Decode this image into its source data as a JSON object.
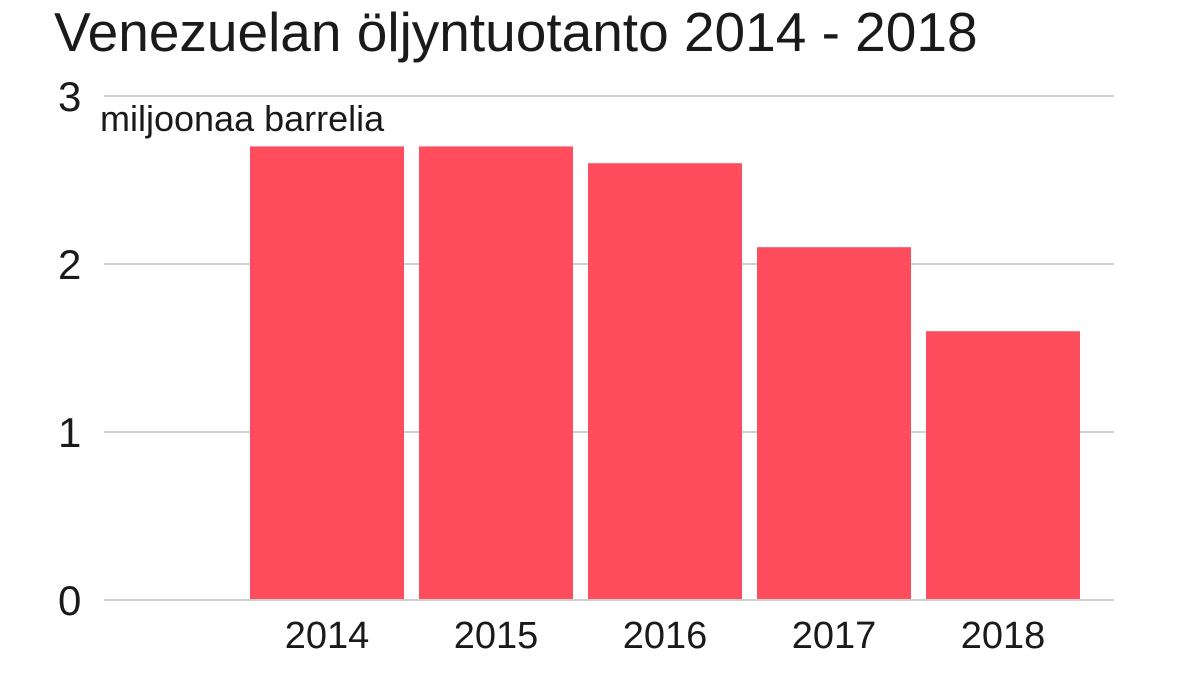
{
  "chart_data": {
    "type": "bar",
    "title": "Venezuelan öljyntuotanto 2014 - 2018",
    "unit_label": "miljoonaa barrelia",
    "categories": [
      "2014",
      "2015",
      "2016",
      "2017",
      "2018"
    ],
    "values": [
      2.7,
      2.7,
      2.6,
      2.1,
      1.6
    ],
    "ylim": [
      0,
      3
    ],
    "yticks": [
      0,
      1,
      2,
      3
    ],
    "grid": true,
    "legend": "none",
    "bar_color": "#ff4d5e",
    "grid_color": "#d0d0d0"
  }
}
